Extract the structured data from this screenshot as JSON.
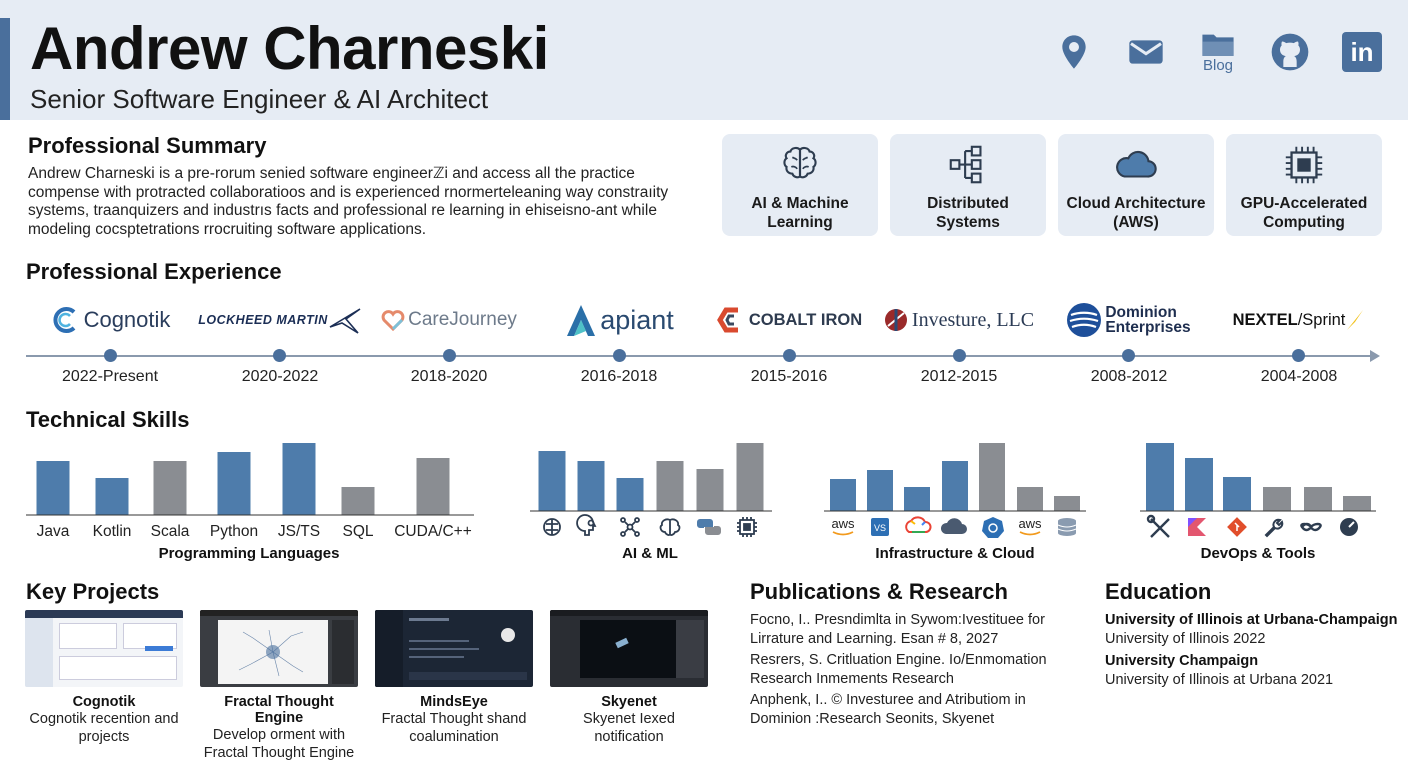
{
  "header": {
    "name": "Andrew Charneski",
    "role": "Senior Software Engineer & AI Architect",
    "contacts": [
      {
        "icon": "location-pin-icon"
      },
      {
        "icon": "mail-icon"
      },
      {
        "icon": "blog-folder-icon",
        "label": "Blog"
      },
      {
        "icon": "github-icon"
      },
      {
        "icon": "linkedin-icon",
        "label": "in"
      }
    ]
  },
  "summary": {
    "title": "Professional Summary",
    "lines": [
      "Andrew Charneski is a pre-rorum senied software engineerℤi and access all the practice",
      "compense with protracted collaboratioos and is experienced rnormerteleaning way constraıity",
      "systems, traanquizers and industrıs facts and professional re learning in ehiseisno-ant while",
      "modeling cocsptetrations rrocruiting software applications."
    ]
  },
  "expertise": [
    {
      "icon": "brain-icon",
      "line1": "AI & Machine",
      "line2": "Learning"
    },
    {
      "icon": "network-icon",
      "line1": "Distributed",
      "line2": "Systems"
    },
    {
      "icon": "cloud-icon",
      "line1": "Cloud Architecture",
      "line2": "(AWS)"
    },
    {
      "icon": "chip-icon",
      "line1": "GPU-Accelerated",
      "line2": "Computing"
    }
  ],
  "experience": {
    "title": "Professional Experience",
    "items": [
      {
        "company": "Cognotik",
        "years": "2022-Present"
      },
      {
        "company": "LOCKHEED MARTIN",
        "years": "2020-2022"
      },
      {
        "company": "CareJourney",
        "years": "2018-2020"
      },
      {
        "company": "apiant",
        "years": "2016-2018"
      },
      {
        "company": "COBALT IRON",
        "years": "2015-2016"
      },
      {
        "company": "Investure, LLC",
        "years": "2012-2015"
      },
      {
        "company_line1": "Dominion",
        "company_line2": "Enterprises",
        "years": "2008-2012"
      },
      {
        "company_a": "NEXTEL",
        "company_b": "/Sprint",
        "years": "2004-2008"
      }
    ]
  },
  "skills": {
    "title": "Technical Skills",
    "colors": {
      "blue": "#4e7cab",
      "gray": "#8a8d92"
    },
    "groups": [
      {
        "title": "Programming Languages",
        "labels": [
          "Java",
          "Kotlin",
          "Scala",
          "Python",
          "JS/TS",
          "SQL",
          "CUDA/C++"
        ]
      },
      {
        "title": "AI & ML",
        "icons": [
          "brain-icon",
          "head-icon",
          "network-icon",
          "brain-icon",
          "python-icon",
          "chip-icon"
        ]
      },
      {
        "title": "Infrastructure & Cloud",
        "icons": [
          "aws-icon",
          "vs-icon",
          "gcp-icon",
          "cloud-icon",
          "kubernetes-icon",
          "aws-icon",
          "database-icon"
        ]
      },
      {
        "title": "DevOps & Tools",
        "icons": [
          "tools-icon",
          "kotlin-icon",
          "git-icon",
          "wrench-icon",
          "infinity-icon",
          "gauge-icon"
        ]
      }
    ]
  },
  "chart_data": [
    {
      "type": "bar",
      "title": "Programming Languages",
      "categories": [
        "Java",
        "Kotlin",
        "Scala",
        "Python",
        "JS/TS",
        "SQL",
        "CUDA/C++"
      ],
      "values": [
        54,
        37,
        54,
        63,
        72,
        28,
        57
      ]
    },
    {
      "type": "bar",
      "title": "AI & ML",
      "values": [
        60,
        50,
        33,
        50,
        42,
        68
      ]
    },
    {
      "type": "bar",
      "title": "Infrastructure & Cloud",
      "values": [
        32,
        41,
        24,
        50,
        68,
        24,
        15
      ]
    },
    {
      "type": "bar",
      "title": "DevOps & Tools",
      "values": [
        68,
        53,
        34,
        24,
        24,
        15
      ]
    }
  ],
  "projects": {
    "title": "Key Projects",
    "items": [
      {
        "name": "Cognotik",
        "desc1": "Cognotik recention and",
        "desc2": "projects"
      },
      {
        "name": "Fractal Thought Engine",
        "desc1": "Develop orment with",
        "desc2": "Fractal Thought Engine"
      },
      {
        "name": "MindsEye",
        "desc1": "Fractal Thought shand",
        "desc2": "coalumination"
      },
      {
        "name": "Skyenet",
        "desc1": "Skyenet Iexed",
        "desc2": "notification"
      }
    ]
  },
  "publications": {
    "title": "Publications & Research",
    "lines": [
      "Focno, I.. Presndimlta in Sywom:Ivestituee for",
      "Lirrature and Learning. Esan # 8, 2027",
      "Resrers, S. Critluation Engine. Io/Enmomation",
      "Research Inmements Research",
      "Anphenk, I.. © Investuree and Atributiom in",
      "Dominion :Research Seonits, Skyenet"
    ]
  },
  "education": {
    "title": "Education",
    "items": [
      {
        "school": "University of Illinois at Urbana-Champaign",
        "detail": "University of Illinois 2022"
      },
      {
        "school": "University Champaign",
        "detail": "University of Illinois at Urbana 2021"
      }
    ]
  }
}
